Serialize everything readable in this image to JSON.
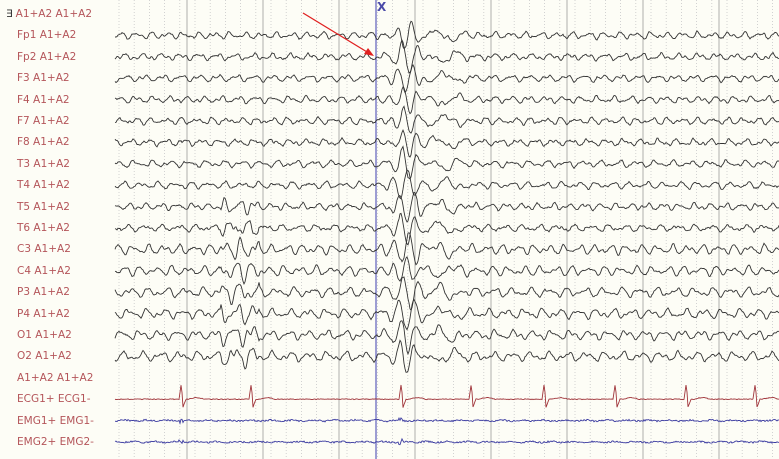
{
  "montage": {
    "channels": [
      {
        "label": "A1+A2 A1+A2",
        "type": "ref"
      },
      {
        "label": "Fp1 A1+A2",
        "type": "eeg"
      },
      {
        "label": "Fp2 A1+A2",
        "type": "eeg"
      },
      {
        "label": "F3 A1+A2",
        "type": "eeg"
      },
      {
        "label": "F4 A1+A2",
        "type": "eeg"
      },
      {
        "label": "F7 A1+A2",
        "type": "eeg"
      },
      {
        "label": "F8 A1+A2",
        "type": "eeg"
      },
      {
        "label": "T3 A1+A2",
        "type": "eeg"
      },
      {
        "label": "T4 A1+A2",
        "type": "eeg"
      },
      {
        "label": "T5 A1+A2",
        "type": "eeg"
      },
      {
        "label": "T6 A1+A2",
        "type": "eeg"
      },
      {
        "label": "C3 A1+A2",
        "type": "eeg"
      },
      {
        "label": "C4 A1+A2",
        "type": "eeg"
      },
      {
        "label": "P3 A1+A2",
        "type": "eeg"
      },
      {
        "label": "P4 A1+A2",
        "type": "eeg"
      },
      {
        "label": "O1 A1+A2",
        "type": "eeg"
      },
      {
        "label": "O2 A1+A2",
        "type": "eeg"
      },
      {
        "label": "A1+A2 A1+A2",
        "type": "ref"
      },
      {
        "label": "ECG1+ ECG1-",
        "type": "ecg"
      },
      {
        "label": "EMG1+ EMG1-",
        "type": "emg"
      },
      {
        "label": "EMG2+ EMG2-",
        "type": "emg"
      }
    ]
  },
  "cursor": {
    "marker": "X"
  },
  "colors": {
    "label": "#b4555a",
    "eeg_trace": "#333333",
    "ecg_trace": "#a0343a",
    "emg_trace": "#3a3aa0",
    "cursor": "#6a6ac0",
    "annotation_arrow": "#e02020",
    "grid_major": "#9a9a9a",
    "grid_minor": "#c8c8c8"
  }
}
